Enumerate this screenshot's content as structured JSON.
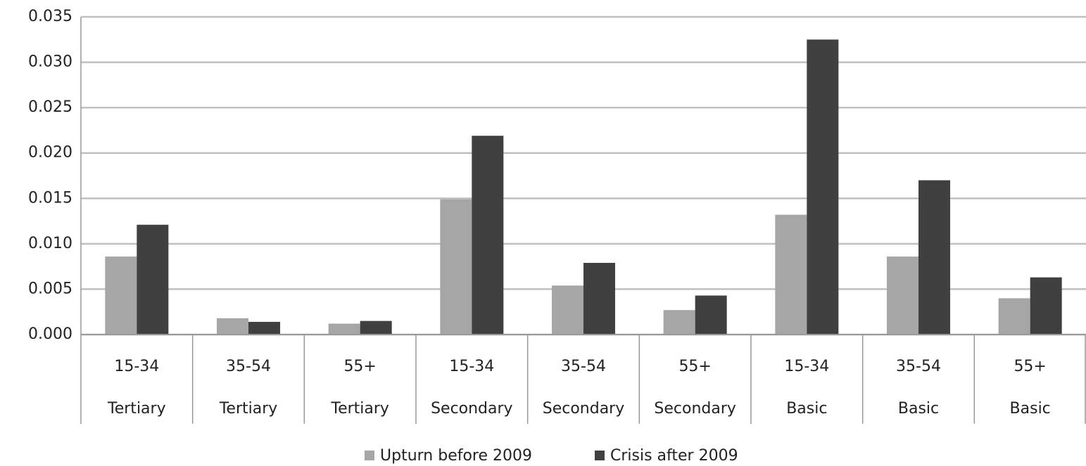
{
  "chart_data": {
    "type": "bar",
    "categories": [
      "15-34",
      "35-54",
      "55+",
      "15-34",
      "35-54",
      "55+",
      "15-34",
      "35-54",
      "55+"
    ],
    "category_groups": [
      "Tertiary",
      "Tertiary",
      "Tertiary",
      "Secondary",
      "Secondary",
      "Secondary",
      "Basic",
      "Basic",
      "Basic"
    ],
    "series": [
      {
        "name": "Upturn before 2009",
        "color": "#a6a6a6",
        "values": [
          0.0086,
          0.0018,
          0.0012,
          0.0149,
          0.0054,
          0.0027,
          0.0132,
          0.0086,
          0.004
        ]
      },
      {
        "name": "Crisis after 2009",
        "color": "#404040",
        "values": [
          0.0121,
          0.0014,
          0.0015,
          0.0219,
          0.0079,
          0.0043,
          0.0325,
          0.017,
          0.0063
        ]
      }
    ],
    "ylim": [
      0,
      0.035
    ],
    "yticks": [
      {
        "value": 0,
        "label": "0.000"
      },
      0.005,
      {
        "value": 0.01,
        "label": "0.010"
      },
      0.015,
      {
        "value": 0.02,
        "label": "0.020"
      },
      0.025,
      {
        "value": 0.03,
        "label": "0.030"
      },
      0.035
    ],
    "grid": true,
    "legend": "bottom"
  }
}
